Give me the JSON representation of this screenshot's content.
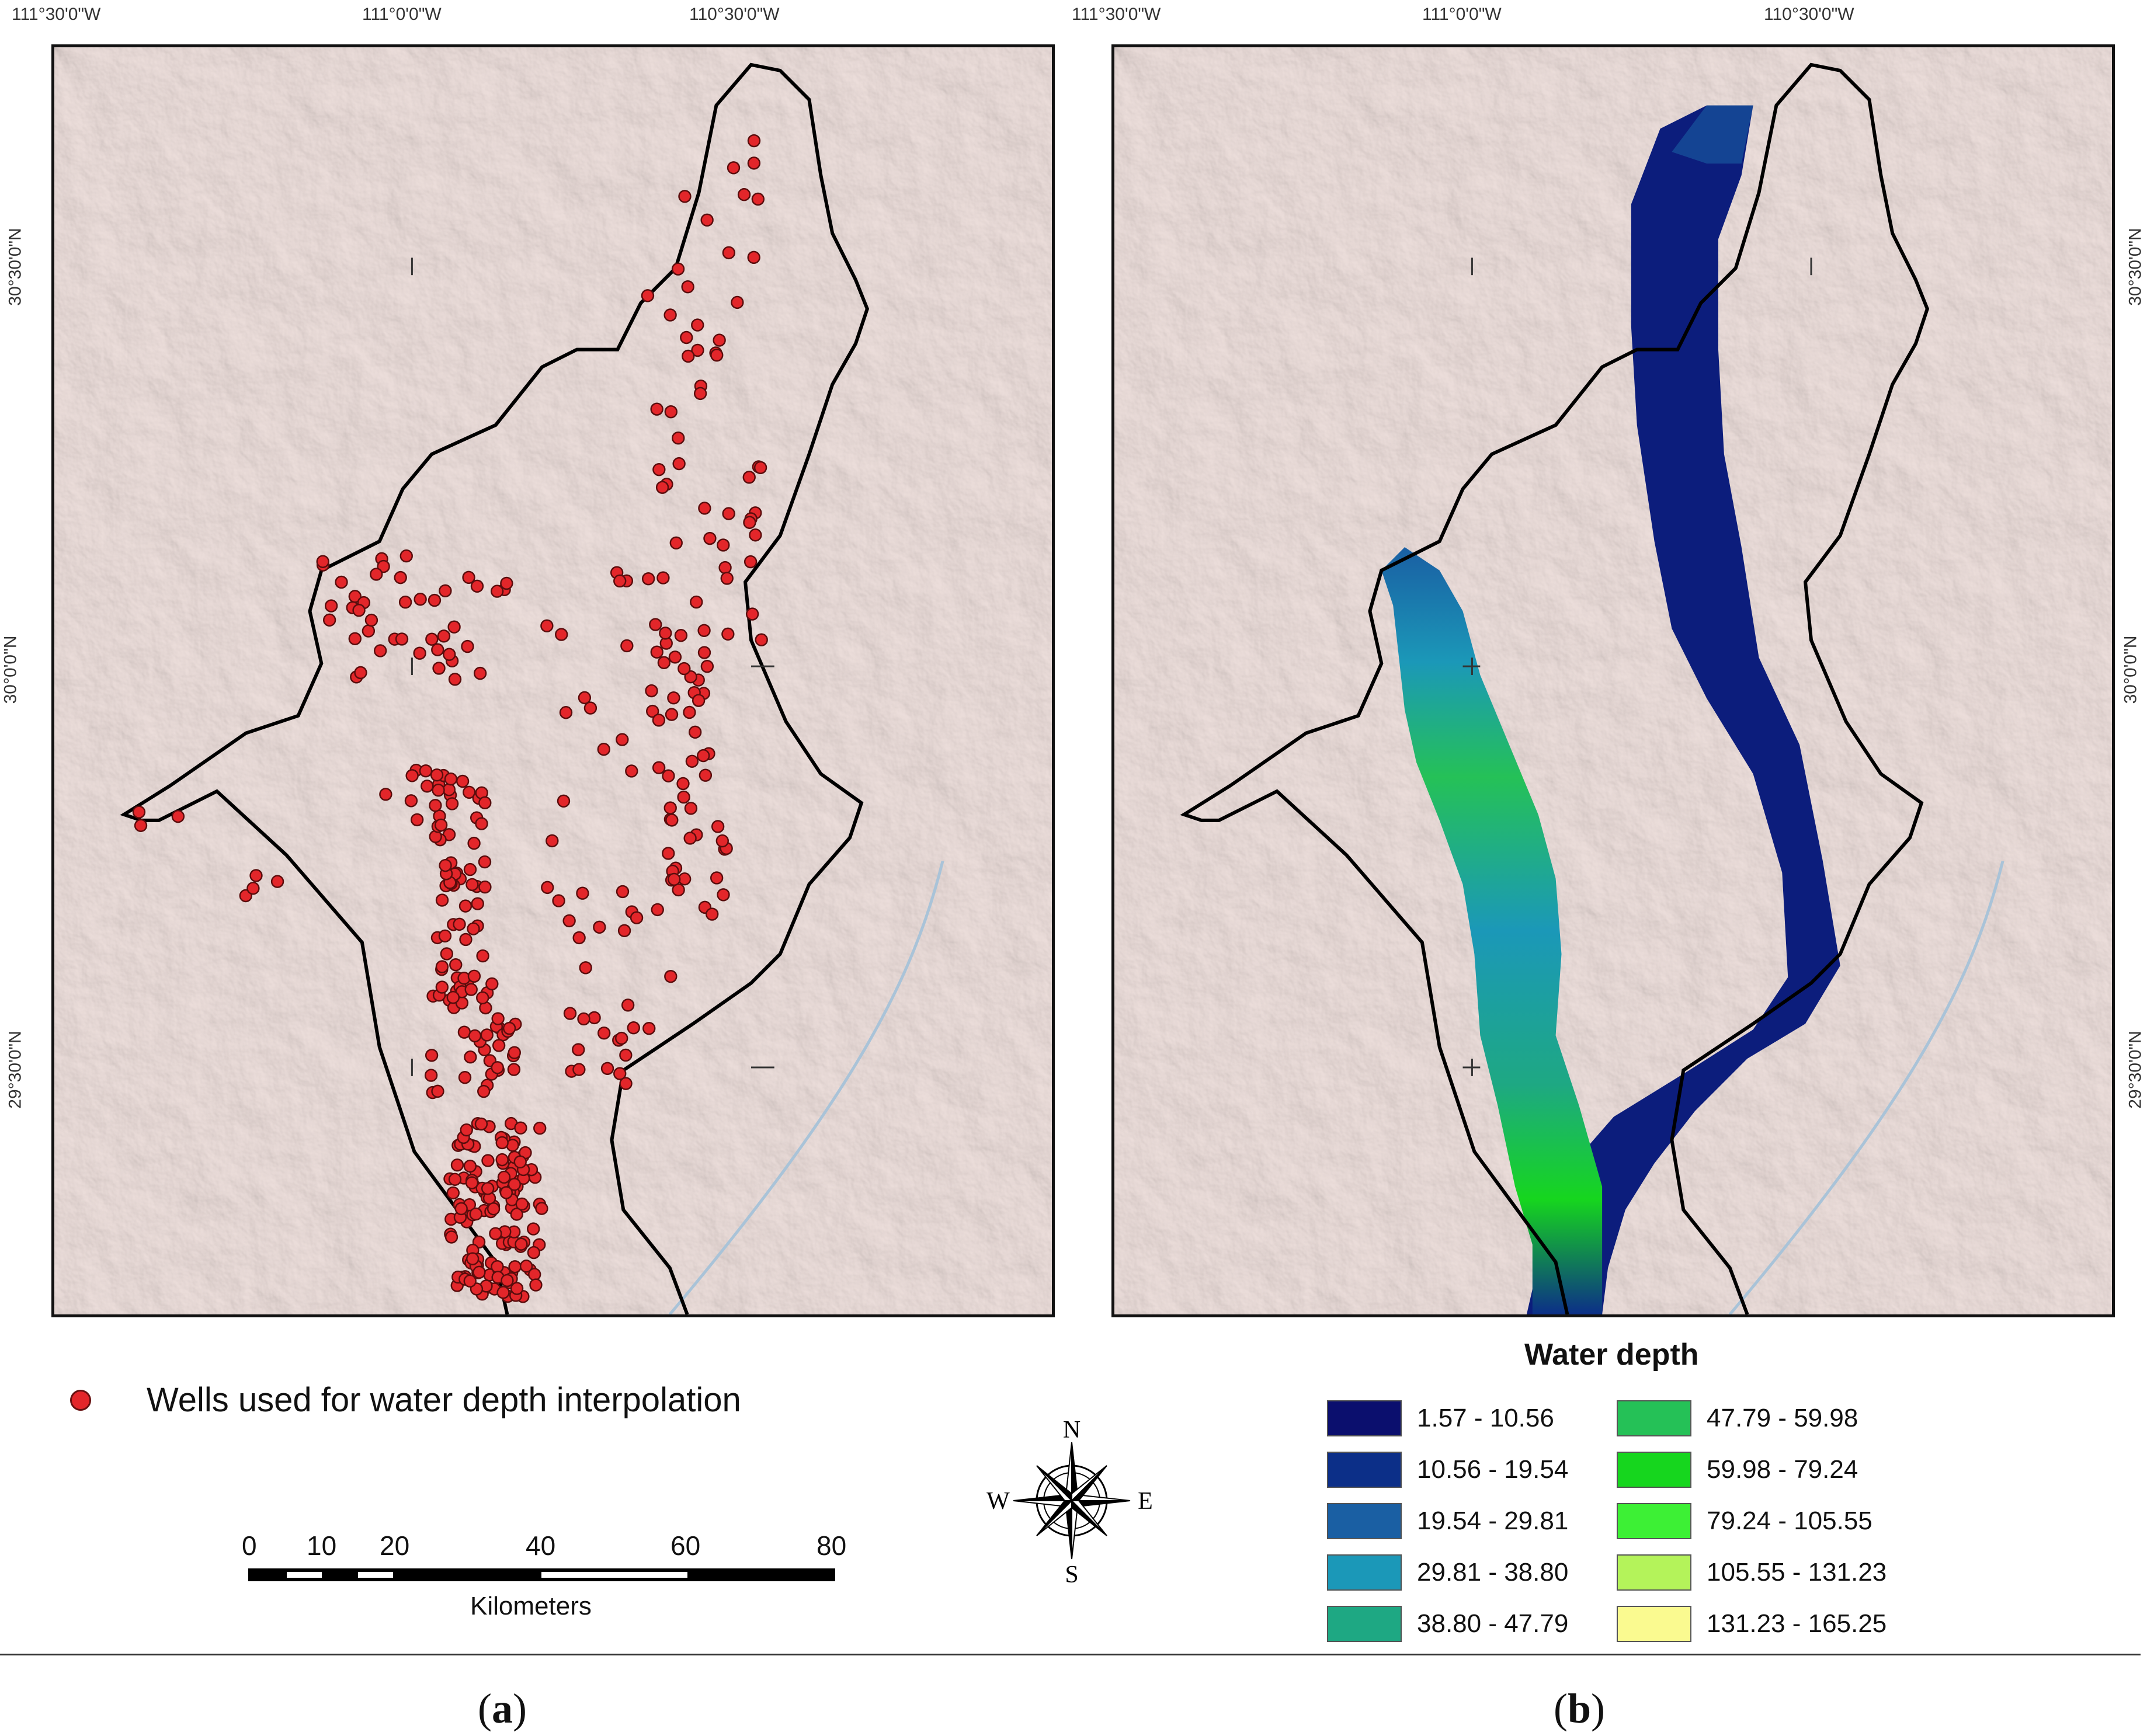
{
  "panels": {
    "a": {
      "label_open": "(",
      "label_letter": "a",
      "label_close": ")"
    },
    "b": {
      "label_open": "(",
      "label_letter": "b",
      "label_close": ")"
    }
  },
  "axes": {
    "top": [
      "111°30'0\"W",
      "111°0'0\"W",
      "110°30'0\"W"
    ],
    "side": [
      "30°30'0\"N",
      "30°0'0\"N",
      "29°30'0\"N"
    ]
  },
  "wells_legend": {
    "label": "Wells used for water depth interpolation",
    "color": "#e3262a"
  },
  "scale": {
    "ticks": [
      "0",
      "10",
      "20",
      "40",
      "60",
      "80"
    ],
    "unit": "Kilometers"
  },
  "compass": {
    "n": "N",
    "e": "E",
    "s": "S",
    "w": "W"
  },
  "water_depth": {
    "title": "Water depth",
    "classes": [
      {
        "label": "1.57 - 10.56",
        "color": "#0b0f6e"
      },
      {
        "label": "10.56 - 19.54",
        "color": "#0c2f88"
      },
      {
        "label": "19.54 - 29.81",
        "color": "#1a5fa3"
      },
      {
        "label": "29.81 - 38.80",
        "color": "#1b98b8"
      },
      {
        "label": "38.80 - 47.79",
        "color": "#1ea883"
      },
      {
        "label": "47.79 - 59.98",
        "color": "#25c157"
      },
      {
        "label": "59.98 - 79.24",
        "color": "#16d61e"
      },
      {
        "label": "79.24 - 105.55",
        "color": "#3df035"
      },
      {
        "label": "105.55 - 131.23",
        "color": "#b4f35a"
      },
      {
        "label": "131.23 - 165.25",
        "color": "#fafa90"
      }
    ]
  }
}
